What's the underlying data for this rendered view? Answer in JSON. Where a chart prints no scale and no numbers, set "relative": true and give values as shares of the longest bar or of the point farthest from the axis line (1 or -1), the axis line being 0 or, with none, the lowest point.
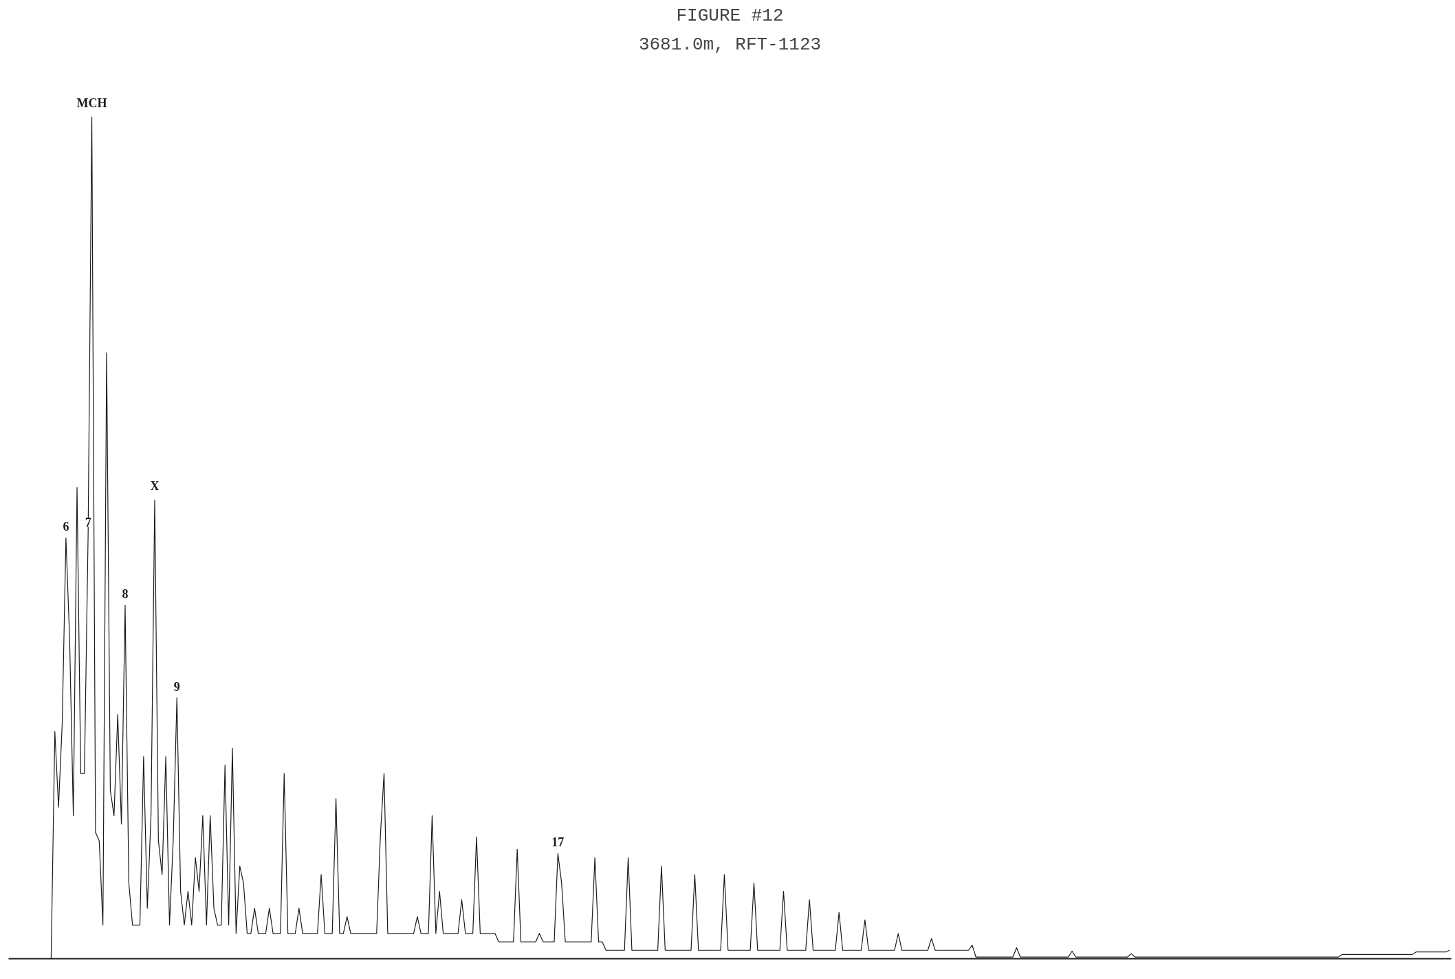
{
  "chart_data": {
    "type": "line",
    "title": "FIGURE #12",
    "subtitle": "3681.0m, RFT-1123",
    "relative": true,
    "annotations": [
      {
        "text": "6",
        "y": 0.5
      },
      {
        "text": "7",
        "y": 0.505
      },
      {
        "text": "MCH",
        "y": 1
      },
      {
        "text": "8",
        "y": 0.42
      },
      {
        "text": "X",
        "y": 0.545
      },
      {
        "text": "9",
        "y": 0.31
      },
      {
        "text": "17",
        "y": 0.125
      }
    ],
    "categories": [
      null,
      null,
      null,
      null,
      null,
      null,
      null,
      null,
      null,
      null,
      null,
      null,
      null,
      null,
      null,
      null,
      null,
      null,
      null,
      null,
      null,
      null,
      null,
      null,
      null,
      null,
      null,
      null,
      null,
      null,
      null,
      null,
      null,
      null,
      null,
      null,
      null,
      null,
      null,
      null,
      null,
      null,
      null,
      null,
      null,
      null,
      null,
      null,
      null,
      null,
      null,
      null,
      null,
      null,
      null,
      null,
      null,
      null,
      null,
      null,
      null,
      null,
      null,
      null,
      null,
      null,
      null,
      null,
      null,
      null,
      null,
      null,
      null,
      null,
      null,
      null,
      null,
      null,
      null,
      null,
      null,
      null,
      null,
      null,
      null,
      null,
      null,
      null,
      null,
      null,
      null,
      null,
      null,
      null,
      null,
      null,
      null,
      null,
      null,
      null,
      null,
      null,
      null,
      null,
      null,
      null,
      null,
      null,
      null,
      null,
      null,
      null,
      null,
      null,
      null,
      null,
      null,
      null,
      null,
      null,
      null,
      null,
      null,
      null,
      null,
      null,
      null,
      null,
      null,
      null,
      null,
      null,
      null,
      null,
      null,
      null,
      null,
      null,
      null,
      null,
      null,
      null,
      null,
      null,
      null,
      null,
      null,
      null,
      null,
      null,
      null,
      null,
      null,
      null,
      null,
      null,
      null,
      null,
      null,
      null,
      null,
      null,
      null,
      null,
      null,
      null,
      null,
      null,
      null,
      null,
      null,
      null,
      null,
      null,
      null,
      null,
      null,
      null,
      null,
      null,
      null,
      null,
      null,
      null,
      null,
      null,
      null,
      null,
      null,
      null,
      null,
      null,
      null,
      null,
      null,
      null,
      null,
      null,
      null,
      null,
      null,
      null,
      null,
      null,
      null,
      null,
      null,
      null,
      null,
      null,
      null,
      null,
      null,
      null,
      null,
      null,
      null,
      null,
      null,
      null,
      null,
      null,
      null,
      null,
      null,
      null,
      null,
      null,
      null,
      null,
      null,
      null,
      null,
      null,
      null,
      null,
      null,
      null,
      null,
      null,
      null,
      null,
      null,
      null,
      null,
      null,
      null,
      null,
      null,
      null,
      null,
      null,
      null,
      null,
      null,
      null,
      null,
      null,
      null,
      null,
      null,
      null,
      null,
      null,
      null,
      null,
      null,
      null,
      null,
      null,
      null,
      null,
      null,
      null,
      null,
      null,
      null,
      null,
      null,
      null,
      null,
      null,
      null,
      null,
      null,
      null,
      null,
      null,
      null,
      null,
      null,
      null,
      null,
      null,
      null,
      null,
      null,
      null,
      null,
      null,
      null,
      null,
      null,
      null,
      null,
      null,
      null,
      null,
      null,
      null,
      null,
      null,
      null,
      null,
      null,
      null,
      null,
      null,
      null,
      null,
      null,
      null,
      null,
      null,
      null,
      null,
      null,
      null,
      null,
      null,
      null,
      null,
      null,
      null,
      null,
      null,
      null,
      null,
      null,
      null,
      null,
      null,
      null,
      null,
      null,
      null,
      null,
      null,
      null,
      null,
      null,
      null,
      null,
      null,
      null,
      null,
      null,
      null,
      null,
      null,
      null,
      null,
      null,
      null,
      null,
      null,
      null,
      null,
      null,
      null,
      null,
      null,
      null,
      null,
      null,
      null,
      null,
      null,
      null,
      null,
      null,
      null,
      null,
      null,
      null,
      null,
      null,
      null,
      null,
      null
    ],
    "series": [
      {
        "color": "#1a1a1a",
        "values": [
          0,
          0,
          0,
          0,
          0,
          0,
          0,
          0,
          0,
          0,
          0,
          0,
          0.27,
          0.18,
          0.28,
          0.5,
          0.38,
          0.17,
          0.56,
          0.22,
          0.22,
          0.505,
          1,
          0.15,
          0.14,
          0.04,
          0.72,
          0.2,
          0.17,
          0.29,
          0.16,
          0.42,
          0.09,
          0.04,
          0.04,
          0.04,
          0.24,
          0.06,
          0.17,
          0.545,
          0.14,
          0.1,
          0.24,
          0.04,
          0.14,
          0.31,
          0.08,
          0.04,
          0.08,
          0.04,
          0.12,
          0.08,
          0.17,
          0.04,
          0.17,
          0.06,
          0.04,
          0.04,
          0.23,
          0.04,
          0.25,
          0.03,
          0.11,
          0.09,
          0.03,
          0.03,
          0.06,
          0.03,
          0.03,
          0.03,
          0.06,
          0.03,
          0.03,
          0.03,
          0.22,
          0.03,
          0.03,
          0.03,
          0.06,
          0.03,
          0.03,
          0.03,
          0.03,
          0.03,
          0.1,
          0.03,
          0.03,
          0.03,
          0.19,
          0.03,
          0.03,
          0.05,
          0.03,
          0.03,
          0.03,
          0.03,
          0.03,
          0.03,
          0.03,
          0.03,
          0.145,
          0.22,
          0.03,
          0.03,
          0.03,
          0.03,
          0.03,
          0.03,
          0.03,
          0.03,
          0.05,
          0.03,
          0.03,
          0.03,
          0.17,
          0.03,
          0.08,
          0.03,
          0.03,
          0.03,
          0.03,
          0.03,
          0.07,
          0.03,
          0.03,
          0.03,
          0.145,
          0.03,
          0.03,
          0.03,
          0.03,
          0.03,
          0.02,
          0.02,
          0.02,
          0.02,
          0.02,
          0.13,
          0.02,
          0.02,
          0.02,
          0.02,
          0.02,
          0.03,
          0.02,
          0.02,
          0.02,
          0.02,
          0.125,
          0.09,
          0.02,
          0.02,
          0.02,
          0.02,
          0.02,
          0.02,
          0.02,
          0.02,
          0.12,
          0.02,
          0.02,
          0.01,
          0.01,
          0.01,
          0.01,
          0.01,
          0.01,
          0.12,
          0.01,
          0.01,
          0.01,
          0.01,
          0.01,
          0.01,
          0.01,
          0.01,
          0.11,
          0.01,
          0.01,
          0.01,
          0.01,
          0.01,
          0.01,
          0.01,
          0.01,
          0.1,
          0.01,
          0.01,
          0.01,
          0.01,
          0.01,
          0.01,
          0.01,
          0.1,
          0.01,
          0.01,
          0.01,
          0.01,
          0.01,
          0.01,
          0.01,
          0.09,
          0.01,
          0.01,
          0.01,
          0.01,
          0.01,
          0.01,
          0.01,
          0.08,
          0.01,
          0.01,
          0.01,
          0.01,
          0.01,
          0.01,
          0.07,
          0.01,
          0.01,
          0.01,
          0.01,
          0.01,
          0.01,
          0.01,
          0.055,
          0.01,
          0.01,
          0.01,
          0.01,
          0.01,
          0.01,
          0.046,
          0.01,
          0.01,
          0.01,
          0.01,
          0.01,
          0.01,
          0.01,
          0.01,
          0.03,
          0.01,
          0.01,
          0.01,
          0.01,
          0.01,
          0.01,
          0.01,
          0.01,
          0.024,
          0.01,
          0.01,
          0.01,
          0.01,
          0.01,
          0.01,
          0.01,
          0.01,
          0.01,
          0.01,
          0.016,
          0.002,
          0.002,
          0.002,
          0.002,
          0.002,
          0.002,
          0.002,
          0.002,
          0.002,
          0.002,
          0.002,
          0.013,
          0.002,
          0.002,
          0.002,
          0.002,
          0.002,
          0.002,
          0.002,
          0.002,
          0.002,
          0.002,
          0.002,
          0.002,
          0.002,
          0.002,
          0.009,
          0.002,
          0.002,
          0.002,
          0.002,
          0.002,
          0.002,
          0.002,
          0.002,
          0.002,
          0.002,
          0.002,
          0.002,
          0.002,
          0.002,
          0.002,
          0.006,
          0.002,
          0.002,
          0.002,
          0.002,
          0.002,
          0.002,
          0.002,
          0.002,
          0.002,
          0.002,
          0.002,
          0.002,
          0.002,
          0.002,
          0.002,
          0.002,
          0.002,
          0.002,
          0.002,
          0.002,
          0.002,
          0.002,
          0.002,
          0.002,
          0.002,
          0.002,
          0.002,
          0.002,
          0.002,
          0.002,
          0.002,
          0.002,
          0.002,
          0.002,
          0.002,
          0.002,
          0.002,
          0.002,
          0.002,
          0.002,
          0.002,
          0.002,
          0.002,
          0.002,
          0.002,
          0.002,
          0.002,
          0.002,
          0.002,
          0.002,
          0.002,
          0.002,
          0.002,
          0.002,
          0.002,
          0.002,
          0.005,
          0.005,
          0.005,
          0.005,
          0.005,
          0.005,
          0.005,
          0.005,
          0.005,
          0.005,
          0.005,
          0.005,
          0.005,
          0.005,
          0.005,
          0.005,
          0.005,
          0.005,
          0.005,
          0.005,
          0.008,
          0.008,
          0.008,
          0.008,
          0.008,
          0.008,
          0.008,
          0.008,
          0.008,
          0.01
        ]
      }
    ]
  }
}
